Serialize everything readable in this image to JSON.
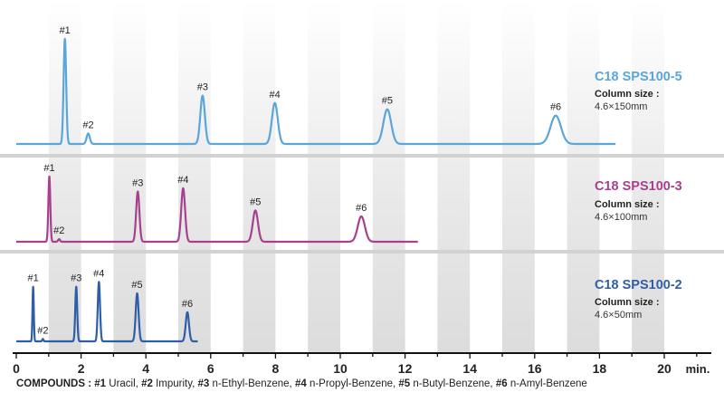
{
  "chart_data": {
    "type": "line",
    "title": "",
    "xlabel": "min.",
    "xlim": [
      0,
      21
    ],
    "xticks": [
      0,
      2,
      4,
      6,
      8,
      10,
      12,
      14,
      16,
      18,
      20
    ],
    "panels": [
      {
        "column": "C18 SPS100-5",
        "size_label": "Column size :",
        "size_value": "4.6×150mm",
        "color": "#5aa5da",
        "end_time": 18.5,
        "peaks": [
          {
            "label": "#1",
            "time": 1.5,
            "height": 1.0,
            "width": 0.04
          },
          {
            "label": "#2",
            "time": 2.22,
            "height": 0.1,
            "width": 0.05
          },
          {
            "label": "#3",
            "time": 5.75,
            "height": 0.46,
            "width": 0.07
          },
          {
            "label": "#4",
            "time": 7.98,
            "height": 0.39,
            "width": 0.09
          },
          {
            "label": "#5",
            "time": 11.45,
            "height": 0.33,
            "width": 0.12
          },
          {
            "label": "#6",
            "time": 16.65,
            "height": 0.27,
            "width": 0.16
          }
        ]
      },
      {
        "column": "C18 SPS100-3",
        "size_label": "Column size :",
        "size_value": "4.6×100mm",
        "color": "#a8408d",
        "end_time": 12.4,
        "peaks": [
          {
            "label": "#1",
            "time": 1.02,
            "height": 1.0,
            "width": 0.03
          },
          {
            "label": "#2",
            "time": 1.32,
            "height": 0.04,
            "width": 0.03
          },
          {
            "label": "#3",
            "time": 3.75,
            "height": 0.77,
            "width": 0.05
          },
          {
            "label": "#4",
            "time": 5.15,
            "height": 0.82,
            "width": 0.06
          },
          {
            "label": "#5",
            "time": 7.38,
            "height": 0.48,
            "width": 0.08
          },
          {
            "label": "#6",
            "time": 10.65,
            "height": 0.39,
            "width": 0.11
          }
        ]
      },
      {
        "column": "C18 SPS100-2",
        "size_label": "Column size :",
        "size_value": "4.6×50mm",
        "color": "#2f5ea8",
        "end_time": 5.6,
        "peaks": [
          {
            "label": "#1",
            "time": 0.52,
            "height": 0.9,
            "width": 0.02
          },
          {
            "label": "#2",
            "time": 0.82,
            "height": 0.04,
            "width": 0.02
          },
          {
            "label": "#3",
            "time": 1.85,
            "height": 0.9,
            "width": 0.03
          },
          {
            "label": "#4",
            "time": 2.55,
            "height": 0.98,
            "width": 0.035
          },
          {
            "label": "#5",
            "time": 3.73,
            "height": 0.79,
            "width": 0.045
          },
          {
            "label": "#6",
            "time": 5.28,
            "height": 0.48,
            "width": 0.05
          }
        ]
      }
    ]
  },
  "compounds": {
    "prefix": "COMPOUNDS :",
    "items": [
      {
        "id": "#1",
        "name": "Uracil,"
      },
      {
        "id": "#2",
        "name": "Impurity,"
      },
      {
        "id": "#3",
        "name": "n-Ethyl-Benzene,"
      },
      {
        "id": "#4",
        "name": "n-Propyl-Benzene,"
      },
      {
        "id": "#5",
        "name": "n-Butyl-Benzene,"
      },
      {
        "id": "#6",
        "name": "n-Amyl-Benzene"
      }
    ]
  }
}
